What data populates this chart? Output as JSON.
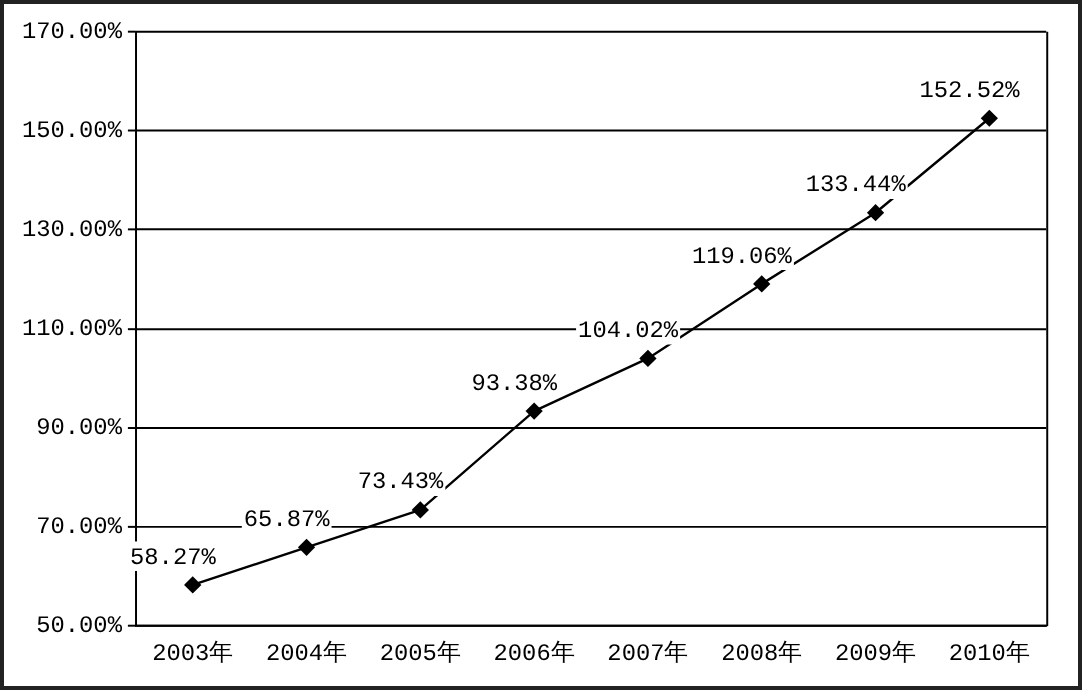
{
  "chart_data": {
    "type": "line",
    "categories": [
      "2003年",
      "2004年",
      "2005年",
      "2006年",
      "2007年",
      "2008年",
      "2009年",
      "2010年"
    ],
    "series": [
      {
        "color": "#000000",
        "values": [
          58.27,
          65.87,
          73.43,
          93.38,
          104.02,
          119.06,
          133.44,
          152.52
        ],
        "value_labels": [
          "58.27%",
          "65.87%",
          "73.43%",
          "93.38%",
          "104.02%",
          "119.06%",
          "133.44%",
          "152.52%"
        ]
      }
    ],
    "ylim": [
      50,
      170
    ],
    "yticks": [
      {
        "value": 50,
        "label": "50.00%"
      },
      {
        "value": 70,
        "label": "70.00%"
      },
      {
        "value": 90,
        "label": "90.00%"
      },
      {
        "value": 110,
        "label": "110.00%"
      },
      {
        "value": 130,
        "label": "130.00%"
      },
      {
        "value": 150,
        "label": "150.00%"
      },
      {
        "value": 170,
        "label": "170.00%"
      }
    ],
    "grid": "y",
    "legend": false,
    "marker": "diamond",
    "line_style": "solid"
  }
}
